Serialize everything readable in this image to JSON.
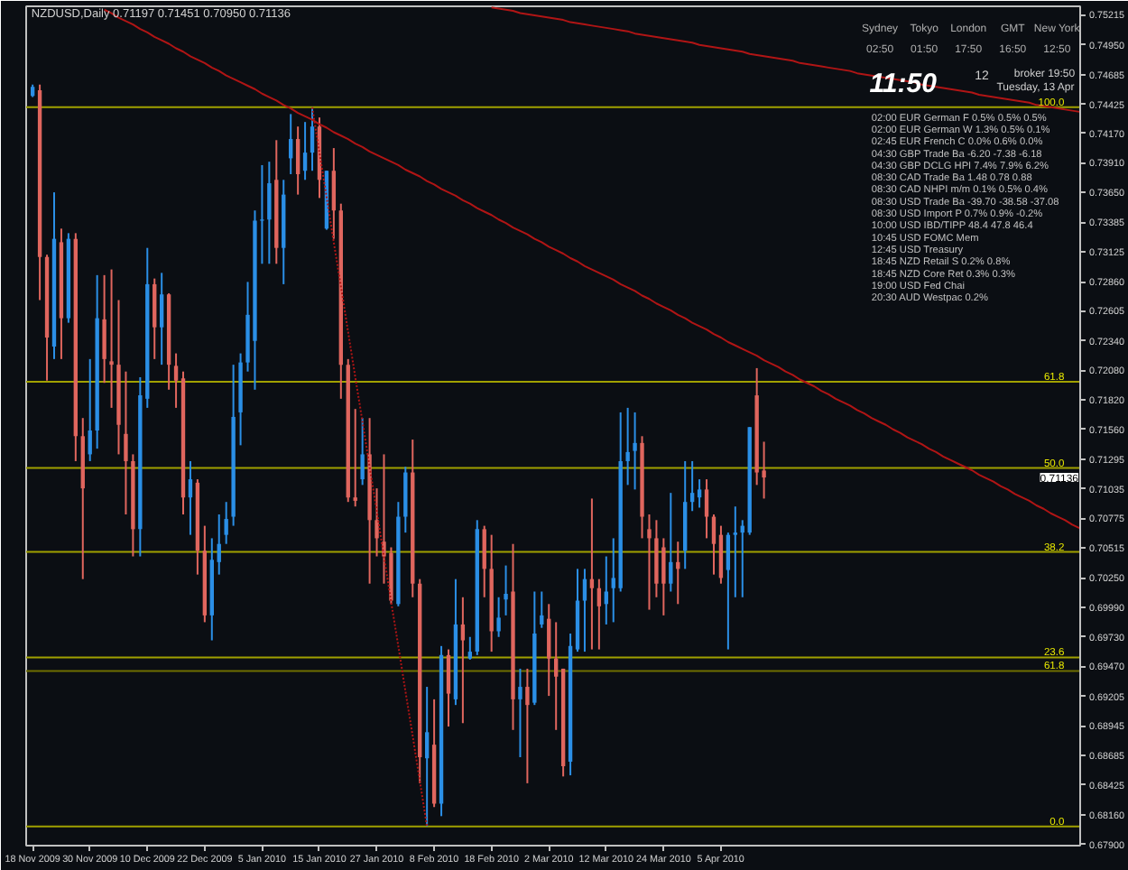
{
  "chart_data": {
    "type": "candlestick",
    "title": "NZDUSD,Daily  0.71197 0.71451 0.70950 0.71136",
    "categories": [
      "18 Nov 2009",
      null,
      null,
      null,
      null,
      null,
      null,
      null,
      "30 Nov 2009",
      null,
      null,
      null,
      null,
      null,
      null,
      null,
      "10 Dec 2009",
      null,
      null,
      null,
      null,
      null,
      null,
      null,
      "22 Dec 2009",
      null,
      null,
      null,
      null,
      null,
      null,
      null,
      "5 Jan 2010",
      null,
      null,
      null,
      null,
      null,
      null,
      null,
      "15 Jan 2010",
      null,
      null,
      null,
      null,
      null,
      null,
      null,
      "27 Jan 2010",
      null,
      null,
      null,
      null,
      null,
      null,
      null,
      "8 Feb 2010",
      null,
      null,
      null,
      null,
      null,
      null,
      null,
      "18 Feb 2010",
      null,
      null,
      null,
      null,
      null,
      null,
      null,
      "2 Mar 2010",
      null,
      null,
      null,
      null,
      null,
      null,
      null,
      "12 Mar 2010",
      null,
      null,
      null,
      null,
      null,
      null,
      null,
      "24 Mar 2010",
      null,
      null,
      null,
      null,
      null,
      null,
      null,
      "5 Apr 2010",
      null,
      null,
      null,
      null,
      null,
      null,
      null,
      null,
      null,
      null,
      null,
      null,
      null,
      null,
      null,
      null,
      null,
      null,
      null,
      null,
      null,
      null,
      null,
      null,
      null,
      null,
      null,
      null,
      null,
      null,
      null,
      null,
      null,
      null,
      null,
      null,
      null,
      null,
      null,
      null,
      null,
      null,
      null,
      null,
      null,
      null,
      null,
      null,
      null,
      null
    ],
    "ohlc": [
      [
        0.745,
        0.746,
        0.7449,
        0.7458
      ],
      [
        0.7455,
        0.746,
        0.727,
        0.7308
      ],
      [
        0.7308,
        0.731,
        0.7199,
        0.7237
      ],
      [
        0.7229,
        0.7365,
        0.7218,
        0.7324
      ],
      [
        0.7321,
        0.7333,
        0.7218,
        0.7254
      ],
      [
        0.7254,
        0.7329,
        0.725,
        0.7324
      ],
      [
        0.7324,
        0.7329,
        0.7128,
        0.715
      ],
      [
        0.715,
        0.7166,
        0.7024,
        0.7104
      ],
      [
        0.7134,
        0.7218,
        0.7128,
        0.7155
      ],
      [
        0.7155,
        0.7292,
        0.7139,
        0.7254
      ],
      [
        0.7253,
        0.7292,
        0.7197,
        0.7218
      ],
      [
        0.7216,
        0.7297,
        0.7175,
        0.7213
      ],
      [
        0.7213,
        0.727,
        0.7134,
        0.716
      ],
      [
        0.7152,
        0.7207,
        0.7081,
        0.7128
      ],
      [
        0.7128,
        0.7134,
        0.7044,
        0.7068
      ],
      [
        0.7068,
        0.7202,
        0.7044,
        0.7186
      ],
      [
        0.7183,
        0.7316,
        0.7175,
        0.7284
      ],
      [
        0.7284,
        0.7289,
        0.7218,
        0.7246
      ],
      [
        0.7246,
        0.7294,
        0.7213,
        0.7275
      ],
      [
        0.7275,
        0.7276,
        0.7191,
        0.7213
      ],
      [
        0.7212,
        0.7223,
        0.7175,
        0.7199
      ],
      [
        0.7201,
        0.7207,
        0.7081,
        0.7096
      ],
      [
        0.7096,
        0.7128,
        0.7063,
        0.7112
      ],
      [
        0.7109,
        0.7112,
        0.7028,
        0.7049
      ],
      [
        0.7049,
        0.7071,
        0.6986,
        0.6992
      ],
      [
        0.6992,
        0.706,
        0.697,
        0.7041
      ],
      [
        0.7039,
        0.7081,
        0.7028,
        0.7055
      ],
      [
        0.7063,
        0.7092,
        0.7055,
        0.7077
      ],
      [
        0.7079,
        0.7213,
        0.7071,
        0.7167
      ],
      [
        0.7171,
        0.7223,
        0.7142,
        0.7215
      ],
      [
        0.7215,
        0.7286,
        0.7207,
        0.7257
      ],
      [
        0.7234,
        0.7349,
        0.7191,
        0.734
      ],
      [
        0.734,
        0.7389,
        0.7302,
        0.7341
      ],
      [
        0.7341,
        0.7392,
        0.7302,
        0.7373
      ],
      [
        0.7376,
        0.7411,
        0.7302,
        0.7316
      ],
      [
        0.7316,
        0.7376,
        0.7284,
        0.7363
      ],
      [
        0.7395,
        0.7434,
        0.7381,
        0.7412
      ],
      [
        0.7412,
        0.7423,
        0.7363,
        0.7381
      ],
      [
        0.7384,
        0.7427,
        0.7376,
        0.74
      ],
      [
        0.74,
        0.744,
        0.7384,
        0.7423
      ],
      [
        0.7423,
        0.7431,
        0.736,
        0.7376
      ],
      [
        0.7333,
        0.7384,
        0.7332,
        0.7384
      ],
      [
        0.7384,
        0.7404,
        0.7324,
        0.7349
      ],
      [
        0.7349,
        0.7355,
        0.7183,
        0.7213
      ],
      [
        0.7213,
        0.7218,
        0.7092,
        0.7096
      ],
      [
        0.7096,
        0.7174,
        0.7088,
        0.7093
      ],
      [
        0.7112,
        0.7166,
        0.7107,
        0.7134
      ],
      [
        0.7134,
        0.7166,
        0.702,
        0.7076
      ],
      [
        0.7076,
        0.7104,
        0.7044,
        0.706
      ],
      [
        0.7057,
        0.7134,
        0.702,
        0.7044
      ],
      [
        0.7047,
        0.7052,
        0.7002,
        0.7005
      ],
      [
        0.7002,
        0.7092,
        0.7,
        0.7079
      ],
      [
        0.7079,
        0.7123,
        0.7065,
        0.7118
      ],
      [
        0.7118,
        0.7147,
        0.7008,
        0.702
      ],
      [
        0.702,
        0.7024,
        0.6844,
        0.6867
      ],
      [
        0.6866,
        0.6929,
        0.6806,
        0.6889
      ],
      [
        0.6878,
        0.6918,
        0.6823,
        0.6826
      ],
      [
        0.6826,
        0.6965,
        0.6815,
        0.6957
      ],
      [
        0.6957,
        0.6962,
        0.6894,
        0.6923
      ],
      [
        0.6918,
        0.7024,
        0.6913,
        0.6984
      ],
      [
        0.6984,
        0.7008,
        0.6897,
        0.697
      ],
      [
        0.6954,
        0.6973,
        0.6953,
        0.696
      ],
      [
        0.696,
        0.7076,
        0.6957,
        0.7068
      ],
      [
        0.7068,
        0.7071,
        0.7008,
        0.7033
      ],
      [
        0.7033,
        0.7063,
        0.696,
        0.6978
      ],
      [
        0.6978,
        0.7008,
        0.6973,
        0.699
      ],
      [
        0.7006,
        0.7036,
        0.6992,
        0.7011
      ],
      [
        0.7013,
        0.7055,
        0.6891,
        0.6918
      ],
      [
        0.6918,
        0.6945,
        0.6867,
        0.6929
      ],
      [
        0.6929,
        0.6945,
        0.6844,
        0.6913
      ],
      [
        0.6915,
        0.7013,
        0.6913,
        0.6976
      ],
      [
        0.6984,
        0.7013,
        0.6981,
        0.6992
      ],
      [
        0.6989,
        0.7002,
        0.6921,
        0.6954
      ],
      [
        0.6954,
        0.6986,
        0.6891,
        0.6938
      ],
      [
        0.6945,
        0.6945,
        0.685,
        0.6859
      ],
      [
        0.6863,
        0.6976,
        0.6851,
        0.6965
      ],
      [
        0.6962,
        0.7033,
        0.696,
        0.7005
      ],
      [
        0.7005,
        0.7033,
        0.696,
        0.7024
      ],
      [
        0.7024,
        0.7095,
        0.6962,
        0.7016
      ],
      [
        0.7016,
        0.7024,
        0.6962,
        0.7
      ],
      [
        0.7002,
        0.7044,
        0.6984,
        0.7013
      ],
      [
        0.7016,
        0.706,
        0.6986,
        0.7025
      ],
      [
        0.7016,
        0.7171,
        0.7013,
        0.7128
      ],
      [
        0.7128,
        0.7175,
        0.7107,
        0.7136
      ],
      [
        0.7137,
        0.7171,
        0.7103,
        0.7144
      ],
      [
        0.7144,
        0.715,
        0.706,
        0.7079
      ],
      [
        0.7068,
        0.7081,
        0.6997,
        0.706
      ],
      [
        0.706,
        0.7076,
        0.7008,
        0.702
      ],
      [
        0.7052,
        0.706,
        0.6992,
        0.702
      ],
      [
        0.702,
        0.71,
        0.7013,
        0.7039
      ],
      [
        0.7039,
        0.7057,
        0.7002,
        0.7033
      ],
      [
        0.7049,
        0.7128,
        0.7033,
        0.7092
      ],
      [
        0.7092,
        0.7128,
        0.7084,
        0.71
      ],
      [
        0.7096,
        0.7112,
        0.7087,
        0.7103
      ],
      [
        0.7103,
        0.7112,
        0.706,
        0.7079
      ],
      [
        0.7079,
        0.7081,
        0.7028,
        0.7055
      ],
      [
        0.7063,
        0.7071,
        0.702,
        0.7025
      ],
      [
        0.7032,
        0.7065,
        0.6962,
        0.7063
      ],
      [
        0.7063,
        0.7088,
        0.7008,
        0.7065
      ],
      [
        0.7065,
        0.7076,
        0.7008,
        0.7071
      ],
      [
        0.7065,
        0.7158,
        0.7063,
        0.7158
      ],
      [
        0.7186,
        0.721,
        0.7107,
        0.7118
      ],
      [
        0.71197,
        0.71451,
        0.7095,
        0.71136
      ],
      null,
      null,
      null,
      null,
      null,
      null,
      null,
      null,
      null,
      null,
      null,
      null,
      null,
      null,
      null,
      null,
      null,
      null,
      null,
      null,
      null,
      null,
      null,
      null,
      null,
      null,
      null,
      null,
      null,
      null,
      null,
      null,
      null,
      null,
      null,
      null,
      null,
      null,
      null,
      null,
      null,
      null,
      null,
      null
    ],
    "colors": [
      "#2b8fe6",
      "#e0665e",
      "#e0665e",
      "#2b8fe6",
      "#e0665e",
      "#2b8fe6",
      "#e0665e",
      "#e0665e",
      "#2b8fe6",
      "#2b8fe6",
      "#e0665e",
      "#e0665e",
      "#e0665e",
      "#e0665e",
      "#e0665e",
      "#2b8fe6",
      "#2b8fe6",
      "#e0665e",
      "#2b8fe6",
      "#e0665e",
      "#e0665e",
      "#e0665e",
      "#2b8fe6",
      "#e0665e",
      "#e0665e",
      "#2b8fe6",
      "#2b8fe6",
      "#2b8fe6",
      "#2b8fe6",
      "#2b8fe6",
      "#2b8fe6",
      "#2b8fe6",
      "#2b8fe6",
      "#2b8fe6",
      "#e0665e",
      "#2b8fe6",
      "#2b8fe6",
      "#e0665e",
      "#2b8fe6",
      "#2b8fe6",
      "#e0665e",
      "#2b8fe6",
      "#e0665e",
      "#e0665e",
      "#e0665e",
      "#e0665e",
      "#2b8fe6",
      "#e0665e",
      "#e0665e",
      "#e0665e",
      "#e0665e",
      "#2b8fe6",
      "#2b8fe6",
      "#e0665e",
      "#e0665e",
      "#2b8fe6",
      "#e0665e",
      "#2b8fe6",
      "#e0665e",
      "#2b8fe6",
      "#e0665e",
      "#2b8fe6",
      "#2b8fe6",
      "#e0665e",
      "#e0665e",
      "#2b8fe6",
      "#2b8fe6",
      "#e0665e",
      "#2b8fe6",
      "#e0665e",
      "#2b8fe6",
      "#2b8fe6",
      "#e0665e",
      "#e0665e",
      "#e0665e",
      "#2b8fe6",
      "#2b8fe6",
      "#2b8fe6",
      "#e0665e",
      "#e0665e",
      "#2b8fe6",
      "#2b8fe6",
      "#2b8fe6",
      "#2b8fe6",
      "#2b8fe6",
      "#e0665e",
      "#e0665e",
      "#e0665e",
      "#e0665e",
      "#2b8fe6",
      "#e0665e",
      "#2b8fe6",
      "#2b8fe6",
      "#2b8fe6",
      "#e0665e",
      "#e0665e",
      "#e0665e",
      "#2b8fe6",
      "#2b8fe6",
      "#2b8fe6",
      "#2b8fe6",
      "#e0665e",
      "#e0665e",
      null,
      null,
      null,
      null,
      null,
      null,
      null,
      null,
      null,
      null,
      null,
      null,
      null,
      null,
      null,
      null,
      null,
      null,
      null,
      null,
      null,
      null,
      null,
      null,
      null,
      null,
      null,
      null,
      null,
      null,
      null,
      null,
      null,
      null,
      null,
      null,
      null,
      null,
      null,
      null,
      null,
      null,
      null,
      null
    ],
    "series": [
      {
        "type": "line",
        "color": "#b01515",
        "line_style": "solid",
        "values": [
          null,
          null,
          null,
          null,
          null,
          null,
          null,
          null,
          null,
          null,
          0.7526,
          0.7523,
          0.7519,
          0.7516,
          0.7513,
          0.7509,
          0.7506,
          0.7502,
          0.7499,
          0.7496,
          0.7492,
          0.7489,
          0.7485,
          0.7482,
          0.7479,
          0.7475,
          0.7472,
          0.7468,
          0.7465,
          0.7462,
          0.7459,
          0.7456,
          0.7452,
          0.7449,
          0.7446,
          0.7442,
          0.7439,
          0.7435,
          0.7432,
          0.7429,
          0.7425,
          0.7422,
          0.7418,
          0.7415,
          0.7412,
          0.7408,
          0.7405,
          0.7401,
          0.7398,
          0.7395,
          0.7392,
          0.7389,
          0.7385,
          0.7382,
          0.7379,
          0.7375,
          0.7372,
          0.7368,
          0.7365,
          0.7362,
          0.7358,
          0.7355,
          0.7351,
          0.7348,
          0.7345,
          0.7341,
          0.7338,
          0.7334,
          0.7331,
          0.7328,
          0.7324,
          0.7321,
          0.7317,
          0.7314,
          0.7311,
          0.7307,
          0.7304,
          0.73,
          0.7297,
          0.7294,
          0.7291,
          0.7288,
          0.7284,
          0.7281,
          0.7278,
          0.7274,
          0.7271,
          0.7267,
          0.7264,
          0.7261,
          0.7257,
          0.7254,
          0.725,
          0.7247,
          0.7244,
          0.724,
          0.7237,
          0.7233,
          0.723,
          0.7227,
          0.7224,
          0.7221,
          0.7217,
          0.7214,
          0.7211,
          0.7207,
          0.7204,
          0.72,
          0.7197,
          0.7194,
          0.719,
          0.7187,
          0.7183,
          0.718,
          0.7177,
          0.7173,
          0.717,
          0.7166,
          0.7163,
          0.716,
          0.7156,
          0.7153,
          0.7149,
          0.7146,
          0.7143,
          0.7139,
          0.7136,
          0.7132,
          0.7129,
          0.7126,
          0.7123,
          0.712,
          0.7116,
          0.7113,
          0.711,
          0.7106,
          0.7103,
          0.7099,
          0.7096,
          0.7093,
          0.7089,
          0.7086,
          0.7082,
          0.7079,
          0.7076,
          0.7072,
          0.7069
        ]
      },
      {
        "type": "line",
        "color": "#b01515",
        "line_style": "solid",
        "values": [
          null,
          null,
          null,
          null,
          null,
          null,
          null,
          null,
          null,
          null,
          null,
          null,
          null,
          null,
          null,
          null,
          null,
          null,
          null,
          null,
          null,
          null,
          null,
          null,
          null,
          null,
          null,
          null,
          null,
          null,
          null,
          null,
          null,
          null,
          null,
          null,
          null,
          null,
          null,
          null,
          null,
          null,
          null,
          null,
          null,
          null,
          null,
          null,
          null,
          null,
          null,
          null,
          null,
          null,
          null,
          null,
          null,
          null,
          null,
          null,
          null,
          null,
          null,
          null,
          0.7528,
          0.7527,
          0.7526,
          0.7525,
          0.7523,
          0.7522,
          0.7521,
          0.752,
          0.7519,
          0.7518,
          0.7517,
          0.7515,
          0.7514,
          0.7513,
          0.7512,
          0.7511,
          0.751,
          0.7509,
          0.7508,
          0.7507,
          0.7505,
          0.7504,
          0.7503,
          0.7502,
          0.7501,
          0.75,
          0.7499,
          0.7498,
          0.7497,
          0.7495,
          0.7494,
          0.7493,
          0.7492,
          0.7491,
          0.749,
          0.7489,
          0.7487,
          0.7486,
          0.7485,
          0.7484,
          0.7483,
          0.7482,
          0.7481,
          0.7479,
          0.7478,
          0.7477,
          0.7476,
          0.7475,
          0.7474,
          0.7473,
          0.7472,
          0.747,
          0.7469,
          0.7468,
          0.7467,
          0.7466,
          0.7465,
          0.7464,
          0.7463,
          0.7462,
          0.746,
          0.7459,
          0.7458,
          0.7457,
          0.7456,
          0.7455,
          0.7454,
          0.7453,
          0.7451,
          0.745,
          0.7449,
          0.7448,
          0.7447,
          0.7446,
          0.7445,
          0.7444,
          0.7442,
          0.7441,
          0.744,
          0.7439,
          0.7438,
          0.7437,
          0.7436
        ]
      },
      {
        "type": "line",
        "color": "#b01515",
        "line_style": "dotted",
        "values": [
          null,
          null,
          null,
          null,
          null,
          null,
          null,
          null,
          null,
          null,
          null,
          null,
          null,
          null,
          null,
          null,
          null,
          null,
          null,
          null,
          null,
          null,
          null,
          null,
          null,
          null,
          null,
          null,
          null,
          null,
          null,
          null,
          null,
          null,
          null,
          null,
          null,
          null,
          null,
          0.744,
          0.74,
          0.7361,
          0.7321,
          0.7282,
          0.7242,
          0.7202,
          0.7163,
          0.7123,
          0.7084,
          0.7044,
          0.7004,
          0.6965,
          0.6925,
          0.6886,
          0.6846,
          0.6806,
          null,
          null,
          null,
          null,
          null,
          null,
          null,
          null,
          null,
          null,
          null,
          null,
          null,
          null,
          null,
          null,
          null,
          null,
          null,
          null,
          null,
          null,
          null,
          null,
          null,
          null,
          null,
          null,
          null,
          null,
          null,
          null,
          null,
          null,
          null,
          null,
          null,
          null,
          null,
          null,
          null,
          null,
          null,
          null,
          null,
          null,
          null,
          null,
          null,
          null,
          null,
          null,
          null,
          null,
          null,
          null,
          null,
          null,
          null,
          null,
          null,
          null,
          null,
          null,
          null,
          null,
          null,
          null,
          null,
          null,
          null,
          null,
          null,
          null,
          null,
          null,
          null,
          null,
          null,
          null,
          null,
          null,
          null,
          null,
          null,
          null,
          null,
          null,
          null,
          null,
          null
        ]
      }
    ],
    "ylim": [
      0.6789,
      0.7529
    ],
    "yticks": [
      {
        "value": 0.75215,
        "label": "0.75215"
      },
      {
        "value": 0.7495,
        "label": "0.74950"
      },
      {
        "value": 0.74685,
        "label": "0.74685"
      },
      {
        "value": 0.74425,
        "label": "0.74425"
      },
      {
        "value": 0.7417,
        "label": "0.74170"
      },
      {
        "value": 0.7391,
        "label": "0.73910"
      },
      {
        "value": 0.7365,
        "label": "0.73650"
      },
      {
        "value": 0.73385,
        "label": "0.73385"
      },
      {
        "value": 0.73125,
        "label": "0.73125"
      },
      {
        "value": 0.7286,
        "label": "0.72860"
      },
      {
        "value": 0.72605,
        "label": "0.72605"
      },
      {
        "value": 0.7234,
        "label": "0.72340"
      },
      {
        "value": 0.7208,
        "label": "0.72080"
      },
      {
        "value": 0.7182,
        "label": "0.71820"
      },
      {
        "value": 0.7156,
        "label": "0.71560"
      },
      {
        "value": 0.71295,
        "label": "0.71295"
      },
      {
        "value": 0.71035,
        "label": "0.71035"
      },
      {
        "value": 0.70775,
        "label": "0.70775"
      },
      {
        "value": 0.70515,
        "label": "0.70515"
      },
      {
        "value": 0.7025,
        "label": "0.70250"
      },
      {
        "value": 0.6999,
        "label": "0.69990"
      },
      {
        "value": 0.6973,
        "label": "0.69730"
      },
      {
        "value": 0.6947,
        "label": "0.69470"
      },
      {
        "value": 0.69205,
        "label": "0.69205"
      },
      {
        "value": 0.68945,
        "label": "0.68945"
      },
      {
        "value": 0.68685,
        "label": "0.68685"
      },
      {
        "value": 0.68425,
        "label": "0.68425"
      },
      {
        "value": 0.6816,
        "label": "0.68160"
      },
      {
        "value": 0.679,
        "label": "0.67900"
      }
    ],
    "ref_lines": [
      {
        "axis": "y",
        "value": 0.744,
        "color": "#a0a000"
      },
      {
        "axis": "y",
        "value": 0.7198,
        "color": "#a0a000"
      },
      {
        "axis": "y",
        "value": 0.7122,
        "color": "#a0a000"
      },
      {
        "axis": "y",
        "value": 0.7048,
        "color": "#a0a000"
      },
      {
        "axis": "y",
        "value": 0.6955,
        "color": "#a0a000"
      },
      {
        "axis": "y",
        "value": 0.6943,
        "color": "#6e6e00"
      },
      {
        "axis": "y",
        "value": 0.6806,
        "color": "#a0a000"
      }
    ],
    "annotations": [
      "0.71136",
      {
        "text": "100.0",
        "y": 0.744
      },
      {
        "text": "61.8",
        "y": 0.7198
      },
      {
        "text": "50.0",
        "y": 0.7122
      },
      {
        "text": "38.2",
        "y": 0.7048
      },
      {
        "text": "23.6",
        "y": 0.6955
      },
      {
        "text": "61.8",
        "y": 0.6943
      },
      {
        "text": "0.0",
        "y": 0.6806
      },
      "Sydney 02:50",
      "Tokyo 01:50",
      "London 17:50",
      "GMT 16:50",
      "New York 12:50",
      "11:50",
      "12",
      "broker 19:50",
      "Tuesday, 13 Apr",
      "02:00 EUR German F 0.5% 0.5% 0.5%",
      "02:00 EUR German W 1.3% 0.5% 0.1%",
      "02:45 EUR French C 0.0% 0.6% 0.0%",
      "04:30 GBP Trade Ba -6.20 -7.38 -6.18",
      "04:30 GBP DCLG HPI 7.4% 7.9% 6.2%",
      "08:30 CAD Trade Ba 1.48 0.78 0.88",
      "08:30 CAD NHPI m/m 0.1% 0.5% 0.4%",
      "08:30 USD Trade Ba -39.70 -38.58 -37.08",
      "08:30 USD Import P 0.7% 0.9% -0.2%",
      "10:00 USD IBD/TIPP 48.4 47.8 46.4",
      "10:45 USD FOMC Mem",
      "12:45 USD Treasury",
      "18:45 NZD Retail S 0.2% 0.8%",
      "18:45 NZD Core Ret 0.3% 0.3%",
      "19:00 USD Fed Chai",
      "20:30 AUD Westpac 0.2%"
    ]
  }
}
